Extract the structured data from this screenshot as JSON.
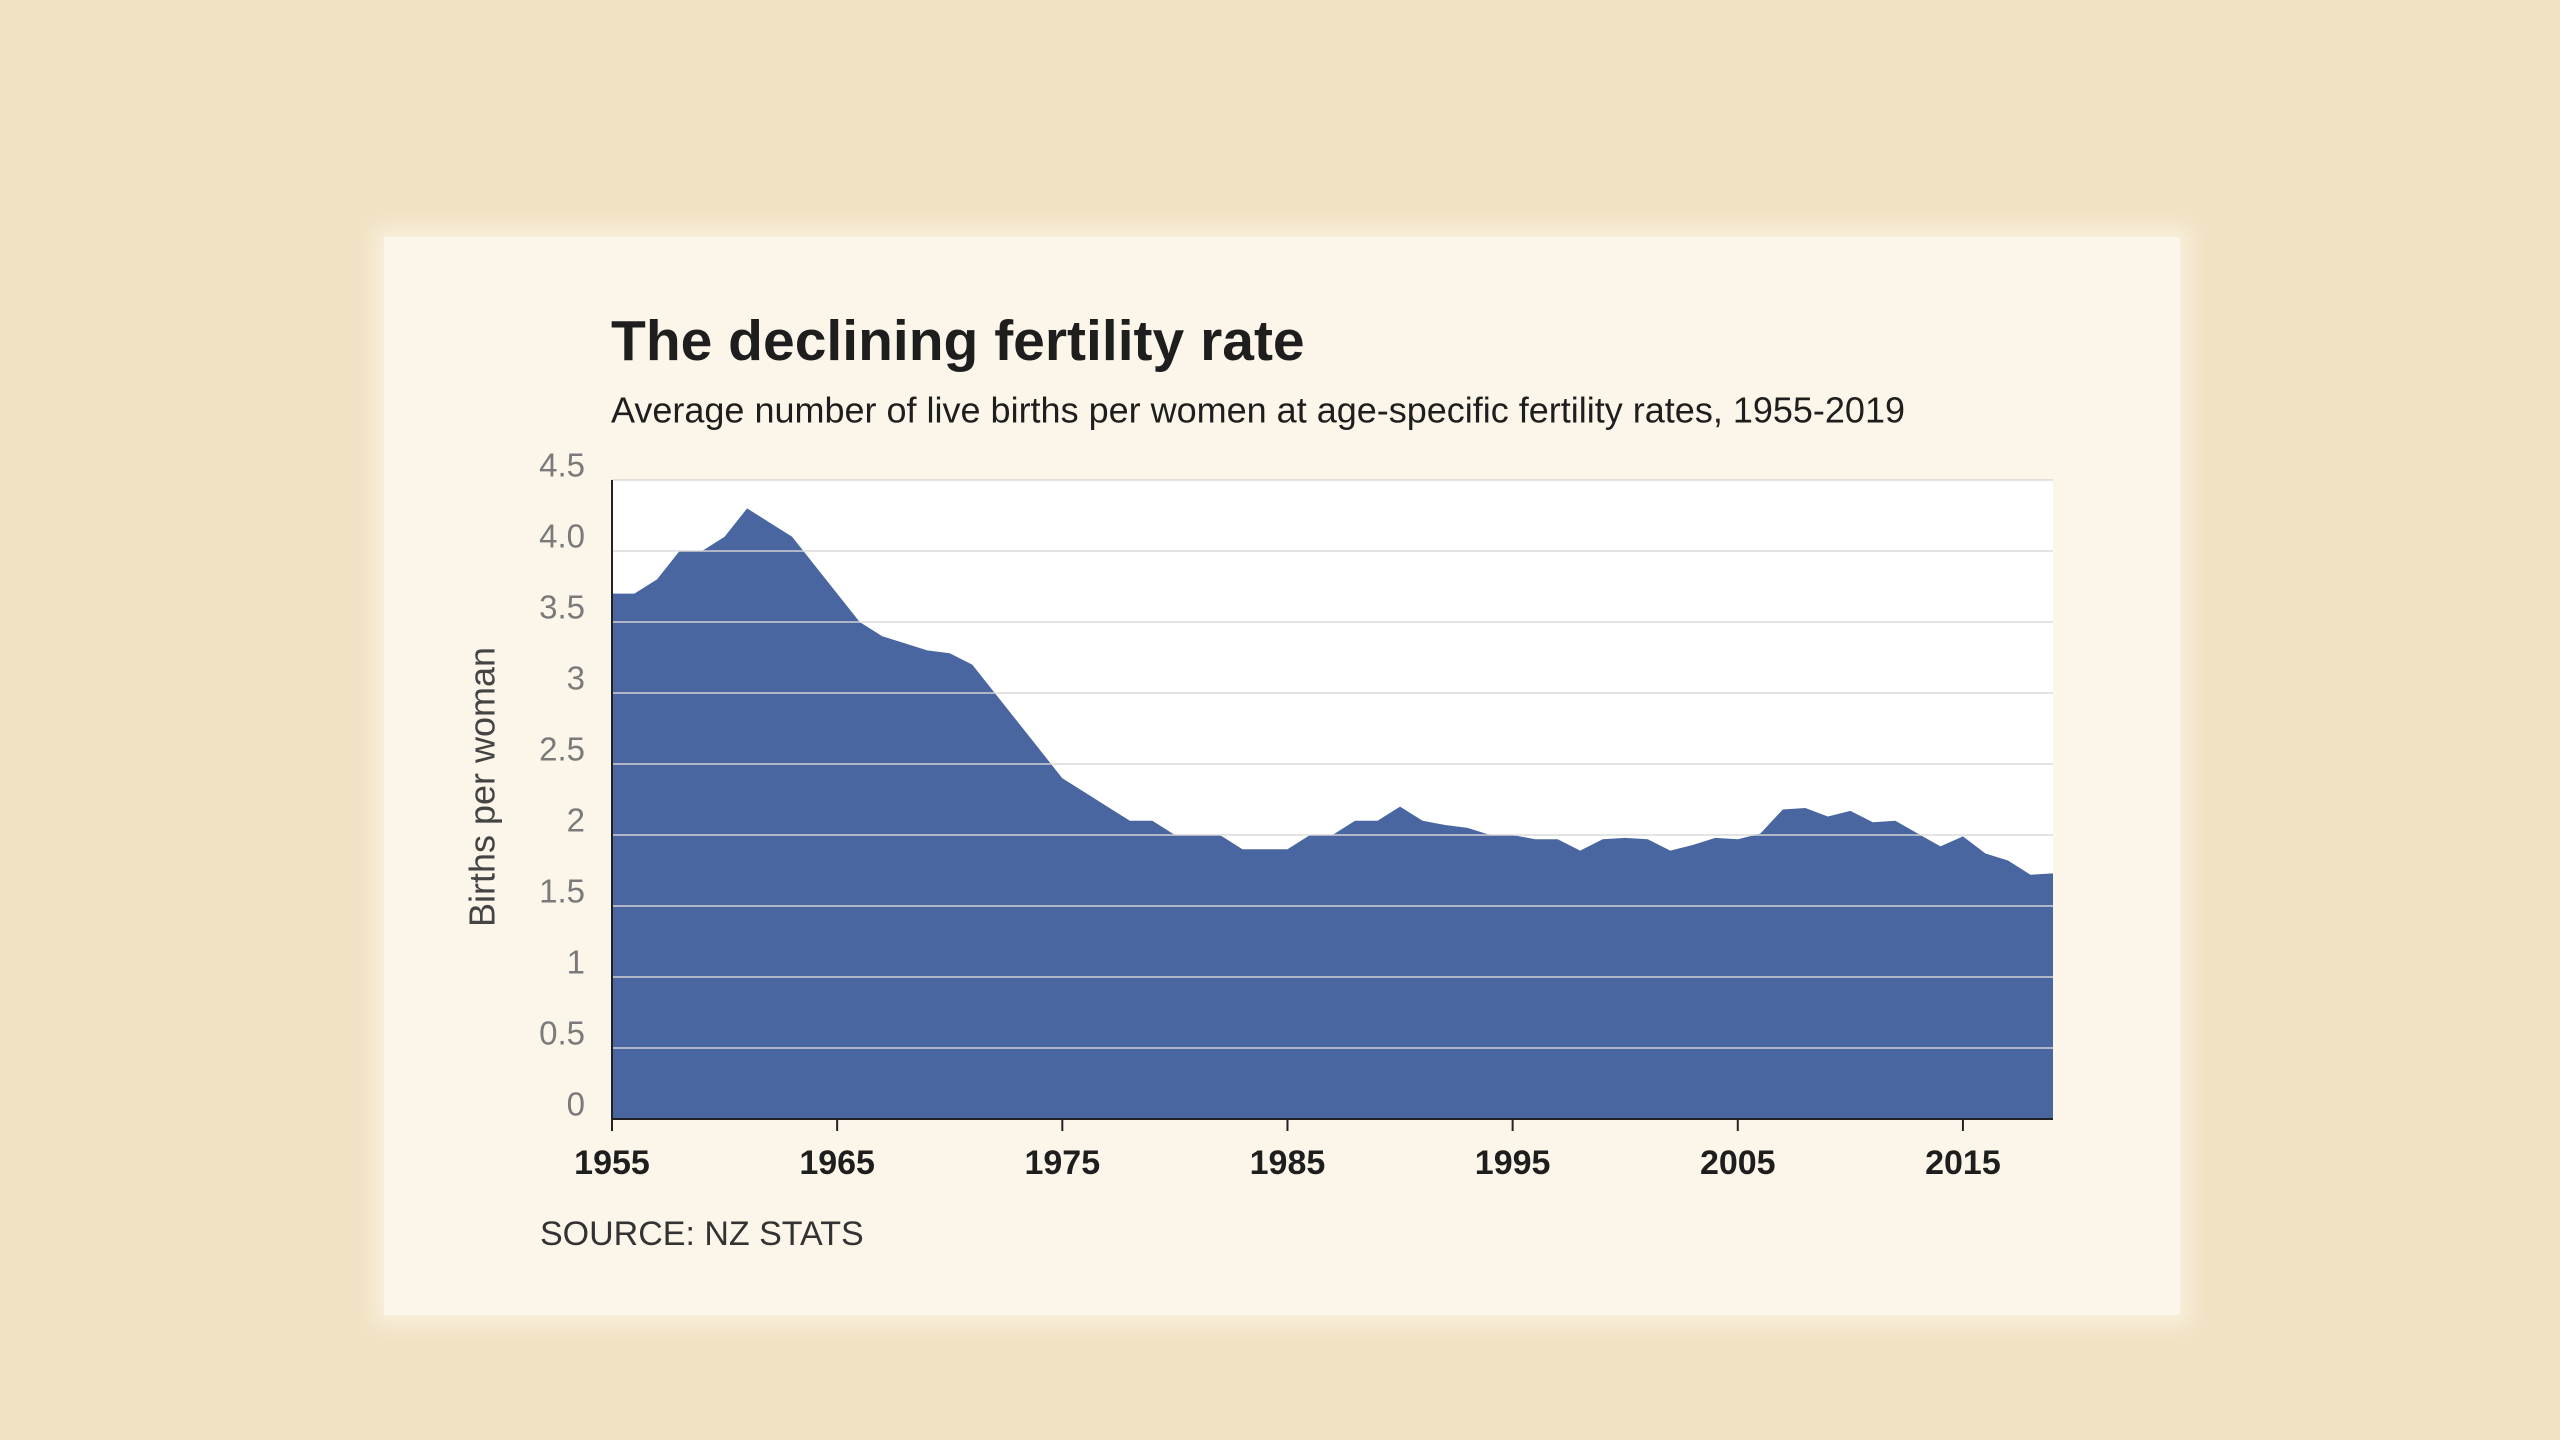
{
  "chart_data": {
    "type": "area",
    "title": "The declining fertility rate",
    "subtitle": "Average number of live births per women at age-specific fertility rates, 1955-2019",
    "y_label": "Births per woman",
    "source": "SOURCE: NZ STATS",
    "color": "#4a66a0",
    "grid": true,
    "x": [
      1955,
      1956,
      1957,
      1958,
      1959,
      1960,
      1961,
      1962,
      1963,
      1964,
      1965,
      1966,
      1967,
      1968,
      1969,
      1970,
      1971,
      1972,
      1973,
      1974,
      1975,
      1976,
      1977,
      1978,
      1979,
      1980,
      1981,
      1982,
      1983,
      1984,
      1985,
      1986,
      1987,
      1988,
      1989,
      1990,
      1991,
      1992,
      1993,
      1994,
      1995,
      1996,
      1997,
      1998,
      1999,
      2000,
      2001,
      2002,
      2003,
      2004,
      2005,
      2006,
      2007,
      2008,
      2009,
      2010,
      2011,
      2012,
      2013,
      2014,
      2015,
      2016,
      2017,
      2018,
      2019
    ],
    "values": [
      3.7,
      3.7,
      3.8,
      4.0,
      4.0,
      4.1,
      4.3,
      4.2,
      4.1,
      3.9,
      3.7,
      3.5,
      3.4,
      3.35,
      3.3,
      3.28,
      3.2,
      3.0,
      2.8,
      2.6,
      2.4,
      2.3,
      2.2,
      2.1,
      2.1,
      2.0,
      2.0,
      2.0,
      1.9,
      1.9,
      1.9,
      2.0,
      2.0,
      2.1,
      2.1,
      2.2,
      2.1,
      2.07,
      2.05,
      2.0,
      2.0,
      1.97,
      1.97,
      1.89,
      1.97,
      1.98,
      1.97,
      1.89,
      1.93,
      1.98,
      1.97,
      2.01,
      2.18,
      2.19,
      2.13,
      2.17,
      2.09,
      2.1,
      2.01,
      1.92,
      1.99,
      1.87,
      1.82,
      1.72,
      1.73
    ],
    "xlim": [
      1955,
      2019
    ],
    "xticks": [
      1955,
      1965,
      1975,
      1985,
      1995,
      2005,
      2015
    ],
    "ylim": [
      0,
      4.5
    ],
    "yticks": [
      0,
      0.5,
      1,
      1.5,
      2,
      2.5,
      3,
      3.5,
      {
        "value": 4,
        "label": "4.0"
      },
      4.5
    ]
  }
}
